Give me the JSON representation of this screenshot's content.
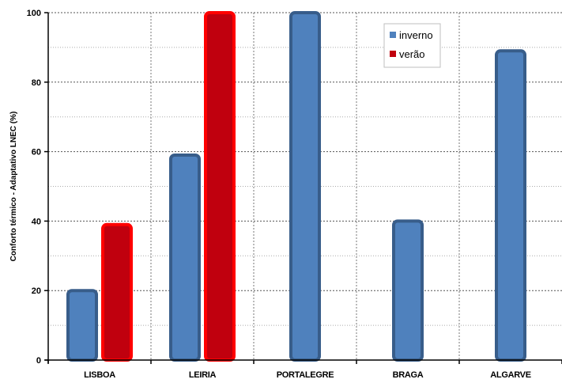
{
  "chart_data": {
    "type": "bar",
    "categories": [
      "LISBOA",
      "LEIRIA",
      "PORTALEGRE",
      "BRAGA",
      "ALGARVE"
    ],
    "series": [
      {
        "name": "inverno",
        "values": [
          20,
          59,
          100,
          40,
          89
        ],
        "color": "#4f81bd",
        "stroke": "#385d8a"
      },
      {
        "name": "verão",
        "values": [
          39,
          100,
          null,
          null,
          null
        ],
        "color": "#c0000e",
        "stroke": "#ff0000"
      }
    ],
    "ylabel": "Conforto térmico - Adaptativo LNEC (%)",
    "xlabel": "",
    "ylim": [
      0,
      100
    ],
    "yticks": [
      0,
      20,
      40,
      60,
      80,
      100
    ],
    "grid": true,
    "legend_position": "top-right"
  }
}
